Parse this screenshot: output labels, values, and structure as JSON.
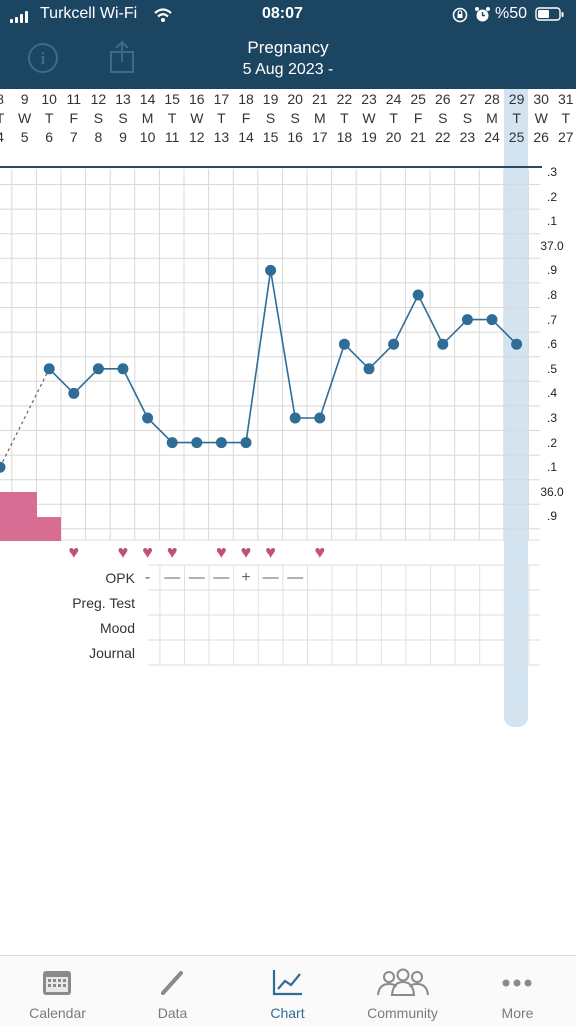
{
  "status_bar": {
    "carrier": "Turkcell Wi-Fi",
    "time": "08:07",
    "battery": "%50"
  },
  "header": {
    "title": "Pregnancy",
    "subtitle": "5 Aug 2023 -",
    "info_label": "i"
  },
  "dates": [
    {
      "month_day": "8",
      "weekday": "T",
      "cycle_day": "4"
    },
    {
      "month_day": "9",
      "weekday": "W",
      "cycle_day": "5"
    },
    {
      "month_day": "10",
      "weekday": "T",
      "cycle_day": "6"
    },
    {
      "month_day": "11",
      "weekday": "F",
      "cycle_day": "7"
    },
    {
      "month_day": "12",
      "weekday": "S",
      "cycle_day": "8"
    },
    {
      "month_day": "13",
      "weekday": "S",
      "cycle_day": "9"
    },
    {
      "month_day": "14",
      "weekday": "M",
      "cycle_day": "10"
    },
    {
      "month_day": "15",
      "weekday": "T",
      "cycle_day": "11"
    },
    {
      "month_day": "16",
      "weekday": "W",
      "cycle_day": "12"
    },
    {
      "month_day": "17",
      "weekday": "T",
      "cycle_day": "13"
    },
    {
      "month_day": "18",
      "weekday": "F",
      "cycle_day": "14"
    },
    {
      "month_day": "19",
      "weekday": "S",
      "cycle_day": "15"
    },
    {
      "month_day": "20",
      "weekday": "S",
      "cycle_day": "16"
    },
    {
      "month_day": "21",
      "weekday": "M",
      "cycle_day": "17"
    },
    {
      "month_day": "22",
      "weekday": "T",
      "cycle_day": "18"
    },
    {
      "month_day": "23",
      "weekday": "W",
      "cycle_day": "19"
    },
    {
      "month_day": "24",
      "weekday": "T",
      "cycle_day": "20"
    },
    {
      "month_day": "25",
      "weekday": "F",
      "cycle_day": "21"
    },
    {
      "month_day": "26",
      "weekday": "S",
      "cycle_day": "22"
    },
    {
      "month_day": "27",
      "weekday": "S",
      "cycle_day": "23"
    },
    {
      "month_day": "28",
      "weekday": "M",
      "cycle_day": "24"
    },
    {
      "month_day": "29",
      "weekday": "T",
      "cycle_day": "25"
    },
    {
      "month_day": "30",
      "weekday": "W",
      "cycle_day": "26"
    },
    {
      "month_day": "31",
      "weekday": "T",
      "cycle_day": "27"
    }
  ],
  "y_axis_labels": [
    ".3",
    ".2",
    ".1",
    "37.0",
    ".9",
    ".8",
    ".7",
    ".6",
    ".5",
    ".4",
    ".3",
    ".2",
    ".1",
    "36.0",
    ".9"
  ],
  "chart_data": {
    "type": "line",
    "x": [
      "8",
      "10",
      "11",
      "12",
      "13",
      "14",
      "15",
      "16",
      "17",
      "18",
      "19",
      "20",
      "21",
      "22",
      "23",
      "24",
      "25",
      "26",
      "27",
      "28",
      "29"
    ],
    "series": [
      {
        "values": [
          36.1,
          36.5,
          36.4,
          36.5,
          36.5,
          36.3,
          36.2,
          36.2,
          36.2,
          36.2,
          36.9,
          36.3,
          36.3,
          36.6,
          36.5,
          36.6,
          36.8,
          36.6,
          36.7,
          36.7,
          36.6
        ]
      }
    ],
    "ylim": [
      35.8,
      37.3
    ],
    "grid": true,
    "dashed_segment_between": [
      "8",
      "10"
    ],
    "menstruation_days": [
      "8",
      "9"
    ],
    "intercourse_days": [
      "11",
      "13",
      "14",
      "15",
      "17",
      "18",
      "19",
      "21"
    ],
    "opk": [
      {
        "day": "14",
        "result": "-"
      },
      {
        "day": "15",
        "result": "—"
      },
      {
        "day": "16",
        "result": "—"
      },
      {
        "day": "17",
        "result": "—"
      },
      {
        "day": "18",
        "result": "+"
      },
      {
        "day": "19",
        "result": "—"
      },
      {
        "day": "20",
        "result": "—"
      }
    ]
  },
  "row_labels": {
    "opk": "OPK",
    "preg_test": "Preg. Test",
    "mood": "Mood",
    "journal": "Journal"
  },
  "tabs": [
    {
      "label": "Calendar",
      "icon": "calendar-icon",
      "active": false
    },
    {
      "label": "Data",
      "icon": "pencil-icon",
      "active": false
    },
    {
      "label": "Chart",
      "icon": "chart-icon",
      "active": true
    },
    {
      "label": "Community",
      "icon": "community-icon",
      "active": false
    },
    {
      "label": "More",
      "icon": "more-icon",
      "active": false
    }
  ],
  "colors": {
    "header_bg": "#1c4562",
    "line": "#2f6d97",
    "heart": "#c0507f",
    "period": "#d76d92",
    "today_highlight": "#d3e3ef",
    "active_tab": "#2f6d97"
  }
}
